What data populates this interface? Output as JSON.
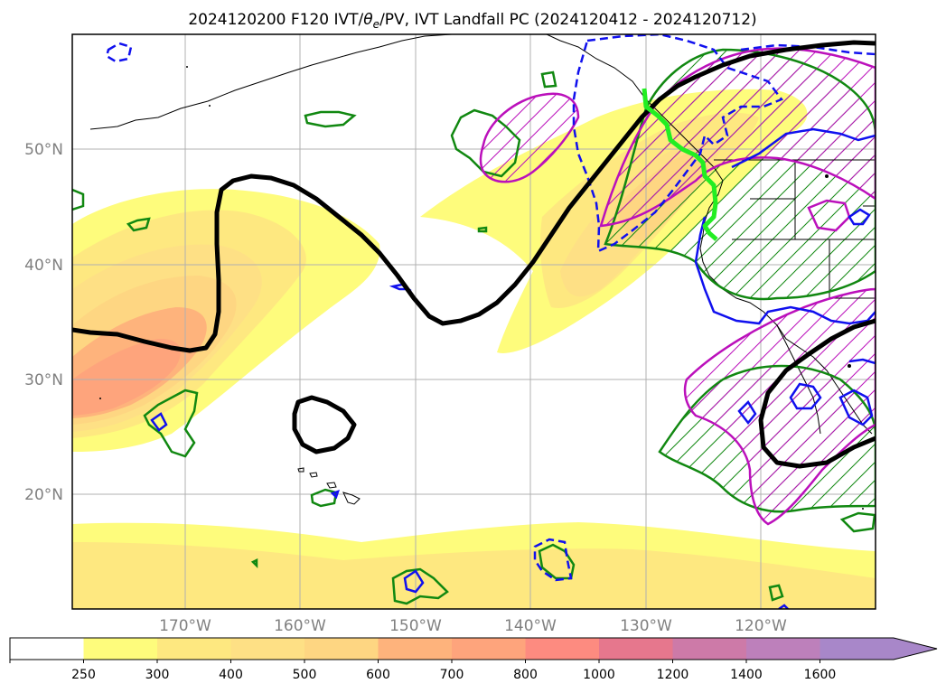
{
  "title": {
    "prefix": "2024120200 F120 IVT/",
    "theta": "θ",
    "sub": "e",
    "suffix": "/PV, IVT Landfall PC (2024120412 - 2024120712)"
  },
  "map": {
    "lat_labels": [
      "50°N",
      "40°N",
      "30°N",
      "20°N"
    ],
    "lon_labels": [
      "170°W",
      "160°W",
      "150°W",
      "140°W",
      "130°W",
      "120°W"
    ]
  },
  "colorbar": {
    "ticks": [
      "250",
      "300",
      "400",
      "500",
      "600",
      "700",
      "800",
      "1000",
      "1200",
      "1400",
      "1600"
    ],
    "colors": [
      "#ffffff",
      "#fefc7c",
      "#fee880",
      "#fee085",
      "#fed682",
      "#feb37c",
      "#fea47c",
      "#fd8b80",
      "#e6778d",
      "#cd7aa8",
      "#bd80bb",
      "#a887c9"
    ],
    "extend": "max"
  },
  "colors": {
    "pv_contour": "#000000",
    "green_contour": "#118811",
    "blue_contour": "#1010ee",
    "magenta_contour": "#bb10bb",
    "landfall_line": "#22ee22"
  }
}
